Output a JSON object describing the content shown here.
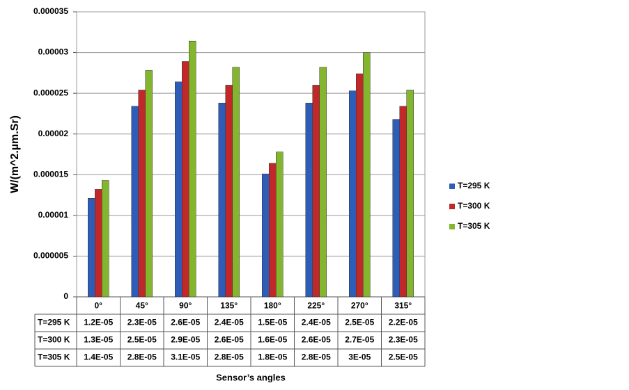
{
  "chart_data": {
    "type": "bar",
    "y_label": "W/(m^2.µm.Sr)",
    "x_label": "Sensor’s angles",
    "categories": [
      "0°",
      "45°",
      "90°",
      "135°",
      "180°",
      "225°",
      "270°",
      "315°"
    ],
    "series": [
      {
        "name": "T=295 K",
        "color": "#2e5db8",
        "values": [
          1.21e-05,
          2.34e-05,
          2.64e-05,
          2.38e-05,
          1.51e-05,
          2.38e-05,
          2.53e-05,
          2.18e-05
        ],
        "value_labels": [
          "1.2E-05",
          "2.3E-05",
          "2.6E-05",
          "2.4E-05",
          "1.5E-05",
          "2.4E-05",
          "2.5E-05",
          "2.2E-05"
        ]
      },
      {
        "name": "T=300 K",
        "color": "#c0282a",
        "values": [
          1.32e-05,
          2.54e-05,
          2.89e-05,
          2.6e-05,
          1.64e-05,
          2.6e-05,
          2.74e-05,
          2.34e-05
        ],
        "value_labels": [
          "1.3E-05",
          "2.5E-05",
          "2.9E-05",
          "2.6E-05",
          "1.6E-05",
          "2.6E-05",
          "2.7E-05",
          "2.3E-05"
        ]
      },
      {
        "name": "T=305 K",
        "color": "#84b52f",
        "values": [
          1.43e-05,
          2.78e-05,
          3.14e-05,
          2.82e-05,
          1.78e-05,
          2.82e-05,
          3e-05,
          2.54e-05
        ],
        "value_labels": [
          "1.4E-05",
          "2.8E-05",
          "3.1E-05",
          "2.8E-05",
          "1.8E-05",
          "2.8E-05",
          "3E-05",
          "2.5E-05"
        ]
      }
    ],
    "ylim": [
      0,
      3.5e-05
    ],
    "yticks": [
      0,
      5e-06,
      1e-05,
      1.5e-05,
      2e-05,
      2.5e-05,
      3e-05,
      3.5e-05
    ],
    "grid": true
  }
}
